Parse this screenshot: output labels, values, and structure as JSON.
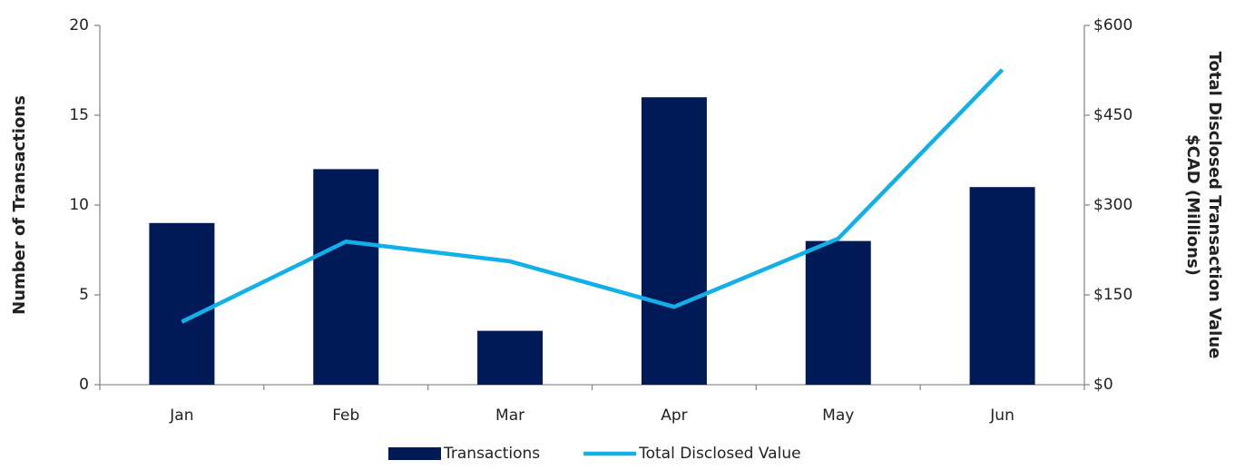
{
  "chart_data": {
    "type": "bar-line",
    "categories": [
      "Jan",
      "Feb",
      "Mar",
      "Apr",
      "May",
      "Jun"
    ],
    "series": [
      {
        "name": "Transactions",
        "color": "#001a57",
        "type": "bar",
        "values": [
          9,
          12,
          3,
          16,
          8,
          11
        ]
      },
      {
        "name": "Total Disclosed Value",
        "color": "#12b0e8",
        "type": "line",
        "axis": "y2",
        "values": [
          105,
          239,
          206,
          130,
          244,
          526
        ]
      }
    ],
    "y_label": "Number of Transactions",
    "y2_label": [
      "Total Disclosed Transaction Value",
      "$CAD (Millions)"
    ],
    "ylim": [
      0,
      20
    ],
    "yticks": [
      0,
      5,
      10,
      15,
      20
    ],
    "y2lim": [
      0,
      600
    ],
    "y2ticks": [
      {
        "value": 0,
        "label": "$0"
      },
      {
        "value": 150,
        "label": "$150"
      },
      {
        "value": 300,
        "label": "$300"
      },
      {
        "value": 450,
        "label": "$450"
      },
      {
        "value": 600,
        "label": "$600"
      }
    ],
    "legend": "bottom",
    "grid": false
  }
}
